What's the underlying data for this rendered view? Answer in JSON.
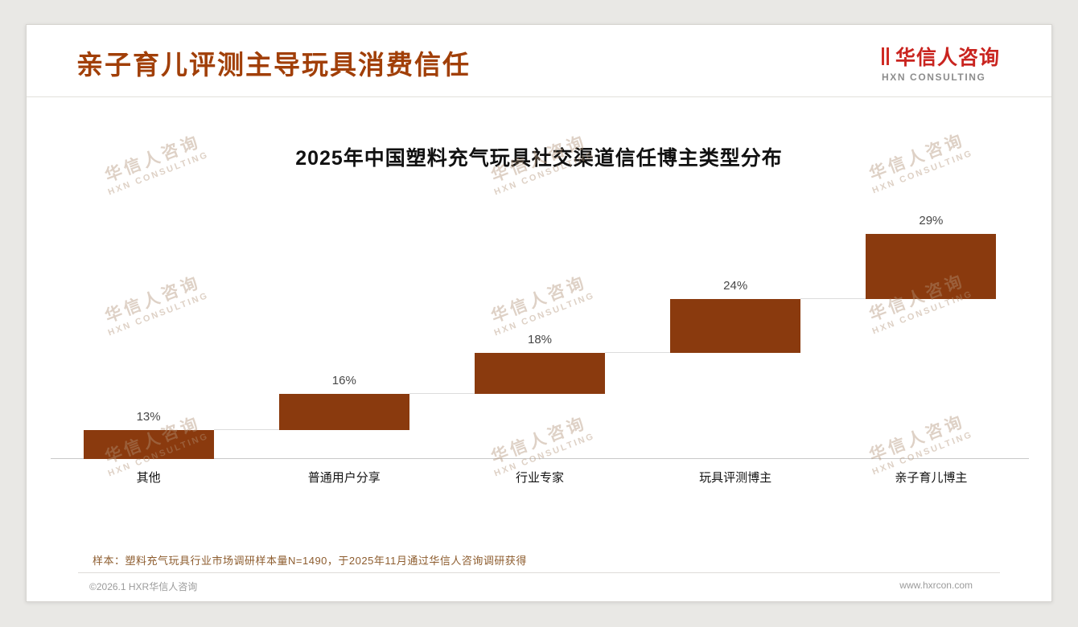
{
  "header": {
    "title": "亲子育儿评测主导玩具消费信任",
    "logo": {
      "name_cn": "华信人咨询",
      "name_en": "HXN CONSULTING",
      "brand_red": "#c9241f"
    }
  },
  "watermark": {
    "line1": "华信人咨询",
    "line2": "HXN CONSULTING"
  },
  "chart_data": {
    "type": "bar",
    "variant": "stepped-ascending",
    "title": "2025年中国塑料充气玩具社交渠道信任博主类型分布",
    "categories": [
      "其他",
      "普通用户分享",
      "行业专家",
      "玩具评测博主",
      "亲子育儿博主"
    ],
    "values": [
      13,
      16,
      18,
      24,
      29
    ],
    "value_labels": [
      "13%",
      "16%",
      "18%",
      "24%",
      "29%"
    ],
    "unit": "%",
    "bar_color": "#8a3a0e",
    "baseline_color": "#c9c9c9",
    "ylim": [
      0,
      100
    ],
    "grid": false,
    "legend": false
  },
  "footnote": {
    "text": "样本：塑料充气玩具行业市场调研样本量N=1490，于2025年11月通过华信人咨询调研获得"
  },
  "footer": {
    "copyright": "©2026.1 HXR华信人咨询",
    "website": "www.hxrcon.com"
  }
}
